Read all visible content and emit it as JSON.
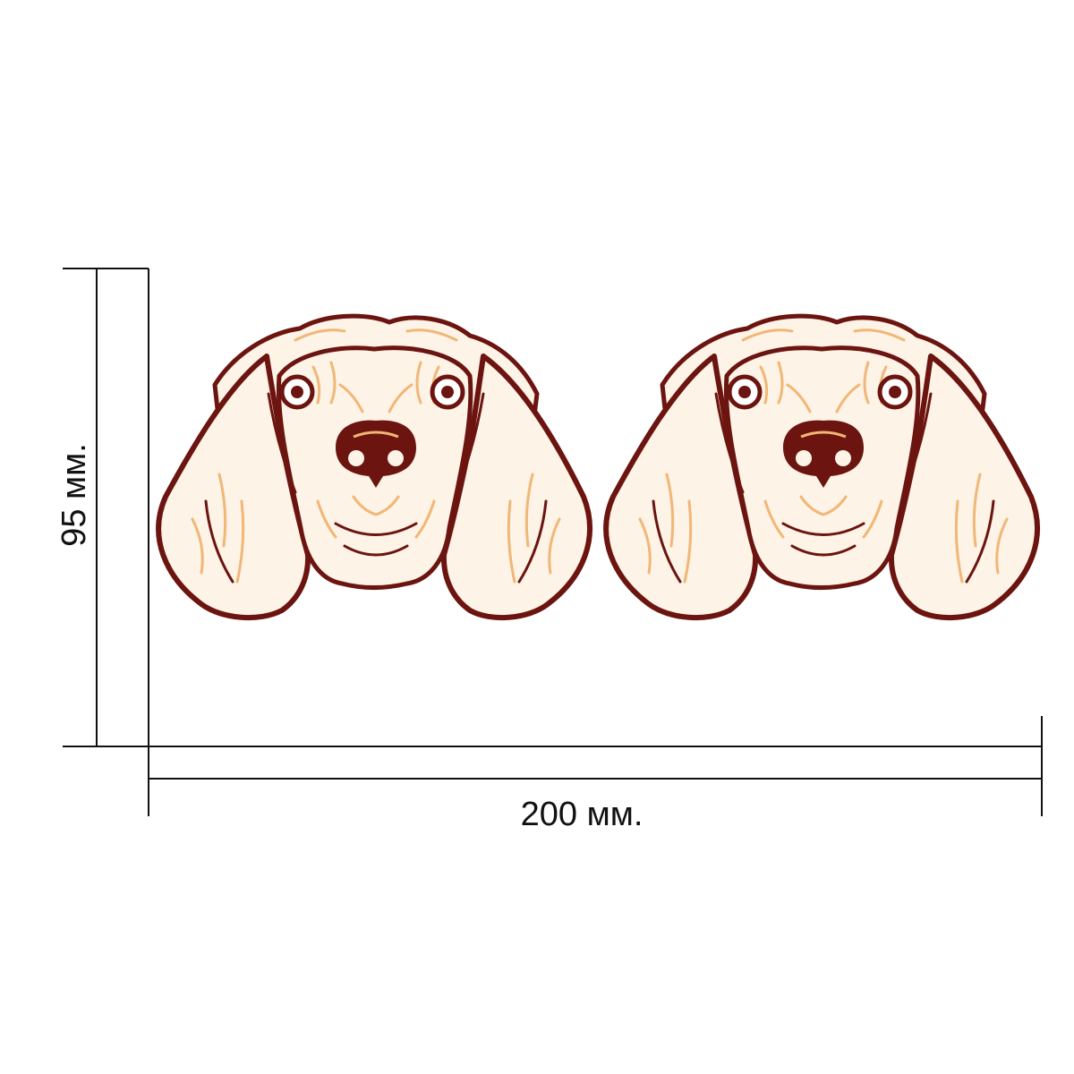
{
  "dimensions": {
    "height_label": "95 мм.",
    "width_label": "200 мм."
  },
  "sticker": {
    "subject": "beagle-head",
    "count": 2
  },
  "colors": {
    "outline": "#6b1410",
    "fur_accent": "#f1b777",
    "fur_light": "#fdf3e6",
    "dimension_line": "#111111"
  }
}
